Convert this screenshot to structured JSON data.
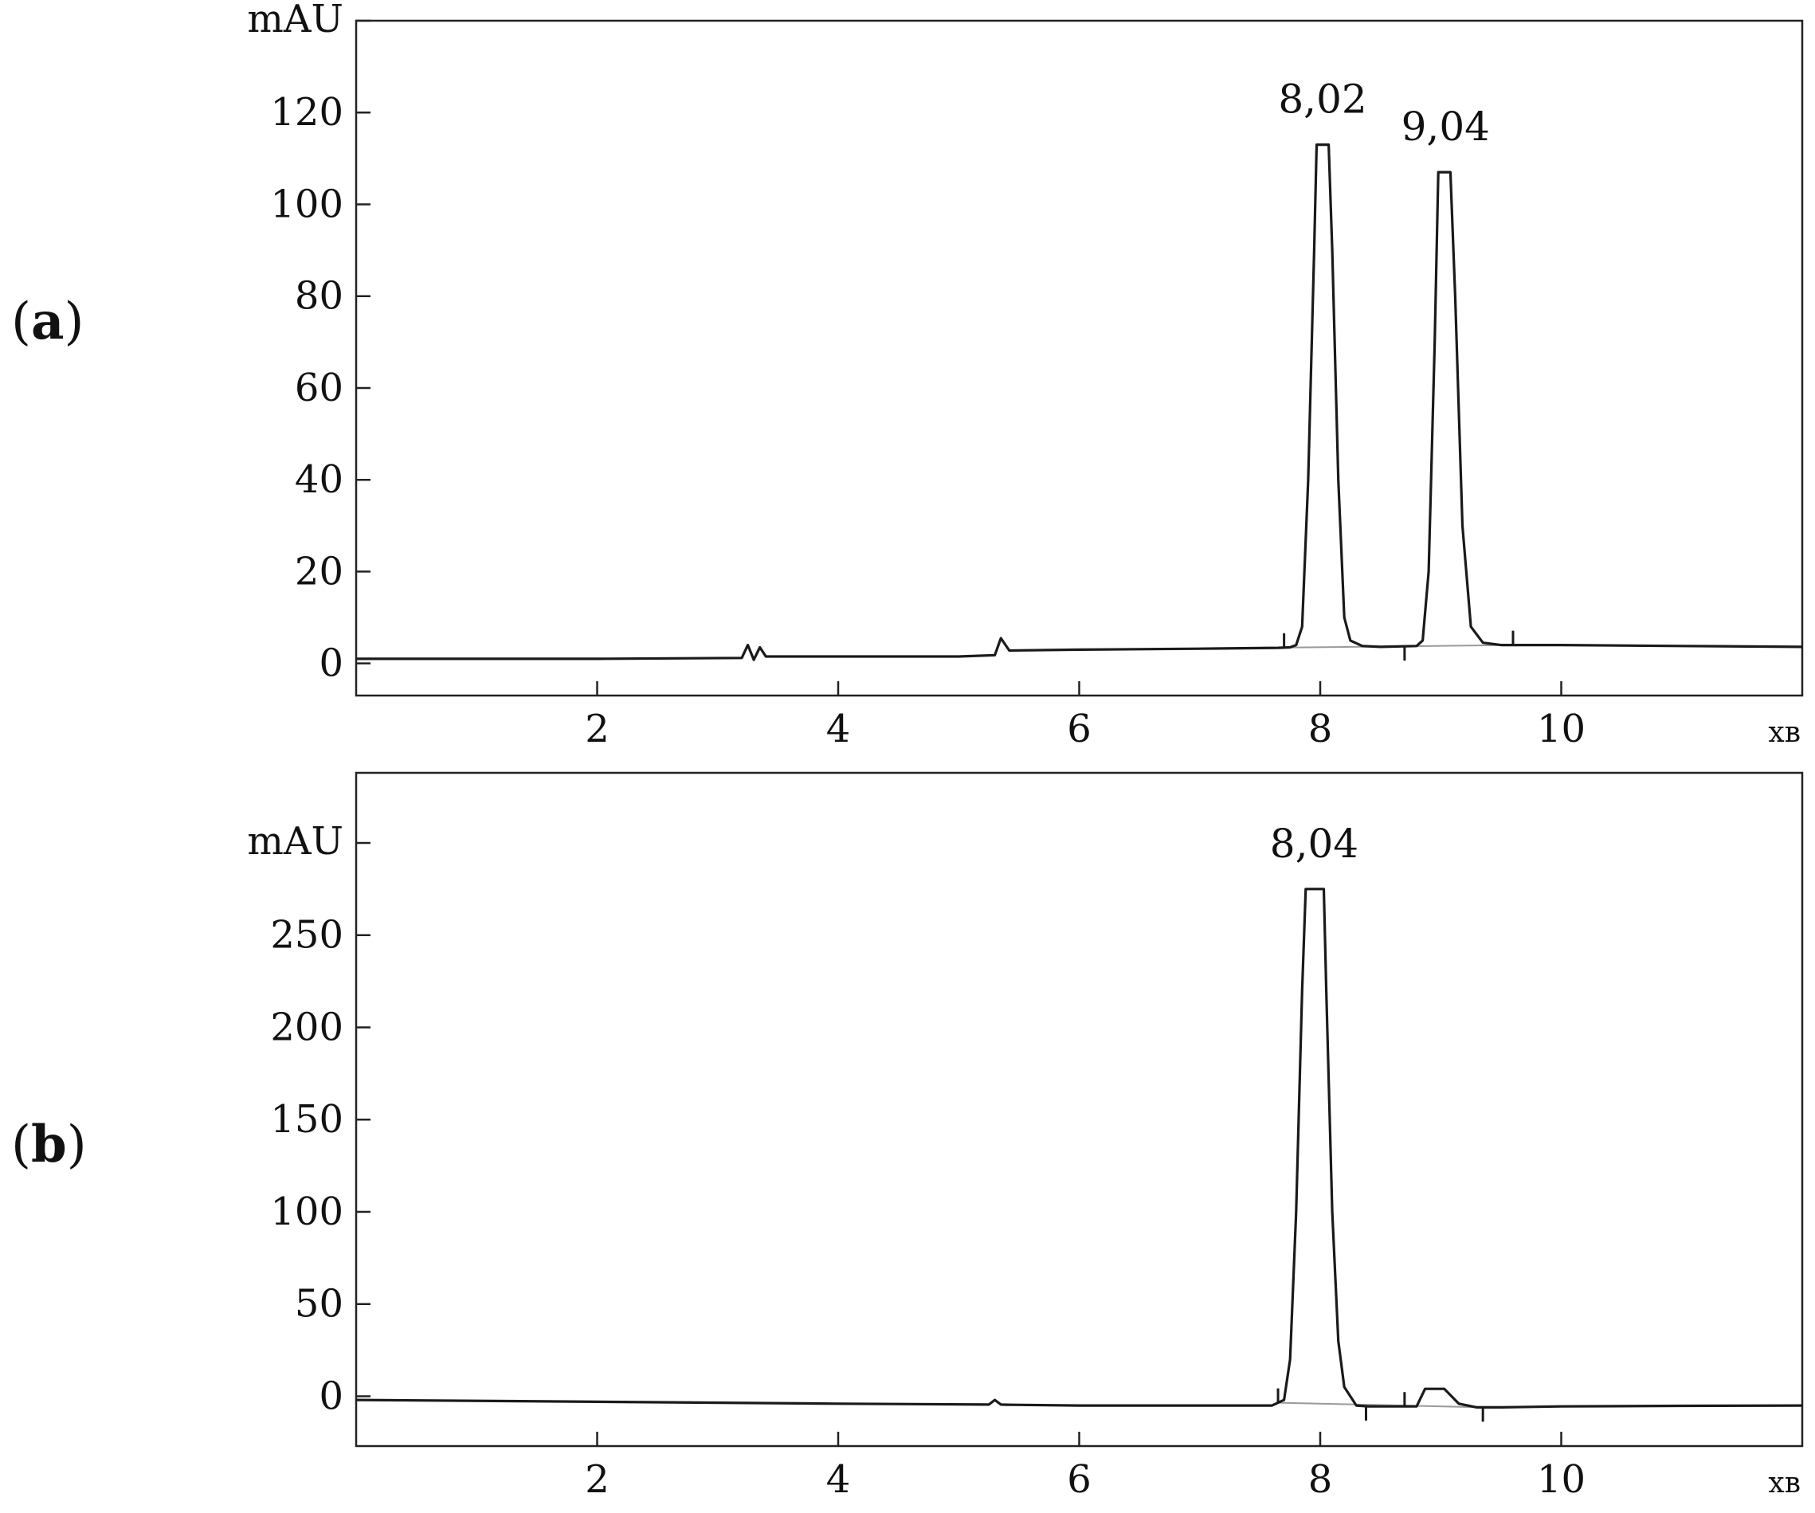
{
  "chart_data": [
    {
      "panel": "a",
      "type": "line",
      "ylabel": "mAU",
      "xlabel": "хв",
      "xlim": [
        0,
        12
      ],
      "ylim": [
        -7,
        140
      ],
      "yticks": [
        0,
        20,
        40,
        60,
        80,
        100,
        120
      ],
      "ytick_labels": [
        "0",
        "20",
        "40",
        "60",
        "80",
        "100",
        "120"
      ],
      "xticks": [
        2,
        4,
        6,
        8,
        10
      ],
      "xtick_labels": [
        "2",
        "4",
        "6",
        "8",
        "10"
      ],
      "grid": false,
      "peak_labels": [
        {
          "text": "8,02",
          "x": 8.02,
          "y": 113
        },
        {
          "text": "9,04",
          "x": 9.04,
          "y": 107
        }
      ],
      "integration_markers": [
        7.7,
        8.7,
        9.6
      ],
      "series": [
        {
          "x": [
            0,
            2,
            3.2,
            3.25,
            3.3,
            3.35,
            3.4,
            3.45,
            4,
            5,
            5.3,
            5.35,
            5.42,
            6,
            7,
            7.65,
            7.75,
            7.8,
            7.85,
            7.9,
            7.95,
            7.97,
            8.07,
            8.1,
            8.15,
            8.2,
            8.25,
            8.35,
            8.5,
            8.8,
            8.85,
            8.9,
            8.95,
            8.98,
            9.08,
            9.12,
            9.18,
            9.25,
            9.35,
            9.5,
            10,
            11,
            12
          ],
          "y": [
            1,
            1,
            1.2,
            4,
            0.8,
            3.5,
            1.5,
            1.5,
            1.5,
            1.5,
            1.8,
            5.5,
            2.8,
            3,
            3.2,
            3.4,
            3.5,
            4,
            8,
            40,
            90,
            113,
            113,
            90,
            40,
            10,
            5,
            3.8,
            3.6,
            3.8,
            5,
            20,
            70,
            107,
            107,
            80,
            30,
            8,
            4.5,
            4,
            4,
            3.8,
            3.6
          ]
        }
      ]
    },
    {
      "panel": "b",
      "type": "line",
      "ylabel": "mAU",
      "xlabel": "хв",
      "xlim": [
        0,
        12
      ],
      "ylim": [
        -27,
        338
      ],
      "yticks": [
        0,
        50,
        100,
        150,
        200,
        250
      ],
      "ytick_labels": [
        "0",
        "50",
        "100",
        "150",
        "200",
        "250"
      ],
      "xticks": [
        2,
        4,
        6,
        8,
        10
      ],
      "xtick_labels": [
        "2",
        "4",
        "6",
        "8",
        "10"
      ],
      "grid": false,
      "peak_labels": [
        {
          "text": "8,04",
          "x": 7.95,
          "y": 275
        }
      ],
      "integration_markers": [
        7.65,
        8.38,
        8.7,
        9.35
      ],
      "series": [
        {
          "x": [
            0,
            2,
            4,
            5.25,
            5.3,
            5.35,
            5.4,
            6,
            7,
            7.6,
            7.7,
            7.75,
            7.8,
            7.85,
            7.88,
            8.03,
            8.05,
            8.1,
            8.15,
            8.2,
            8.3,
            8.4,
            8.6,
            8.8,
            8.87,
            9.03,
            9.15,
            9.3,
            9.5,
            10,
            11,
            12
          ],
          "y": [
            -2,
            -3,
            -4,
            -4.5,
            -2,
            -4.5,
            -4.6,
            -5,
            -5,
            -5,
            -2,
            20,
            100,
            220,
            275,
            275,
            220,
            100,
            30,
            5,
            -5,
            -5.5,
            -5.5,
            -5.5,
            4,
            4,
            -4,
            -6,
            -6,
            -5.5,
            -5.2,
            -5
          ]
        }
      ]
    }
  ],
  "panel_labels": {
    "a_open": "(",
    "a_letter": "a",
    "a_close": ")",
    "b_open": "(",
    "b_letter": "b",
    "b_close": ")"
  },
  "colors": {
    "trace": "#1a1a1a",
    "baseline": "#9a9a9a",
    "frame": "#222222"
  }
}
